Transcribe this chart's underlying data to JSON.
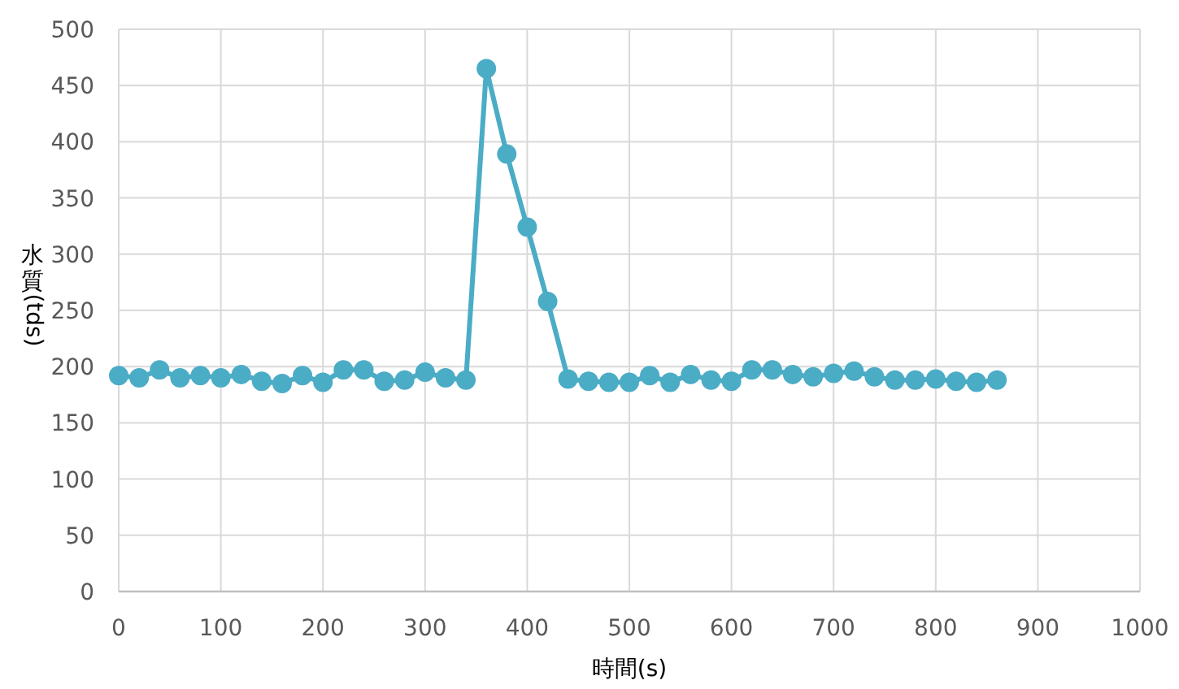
{
  "chart_data": {
    "type": "line",
    "xlabel": "時間(s)",
    "ylabel": "水質(tds)",
    "x": [
      0,
      20,
      40,
      60,
      80,
      100,
      120,
      140,
      160,
      180,
      200,
      220,
      240,
      260,
      280,
      300,
      320,
      340,
      360,
      380,
      400,
      420,
      440,
      460,
      480,
      500,
      520,
      540,
      560,
      580,
      600,
      620,
      640,
      660,
      680,
      700,
      720,
      740,
      760,
      780,
      800,
      820,
      840,
      860
    ],
    "values": [
      192,
      190,
      197,
      190,
      192,
      190,
      193,
      187,
      185,
      192,
      186,
      197,
      197,
      187,
      188,
      195,
      190,
      188,
      465,
      389,
      324,
      258,
      189,
      187,
      186,
      186,
      192,
      186,
      193,
      188,
      187,
      197,
      197,
      193,
      191,
      194,
      196,
      191,
      188,
      188,
      189,
      187,
      186,
      188
    ],
    "color": "#4bacc6",
    "xlim": [
      0,
      1000
    ],
    "xticks": [
      0,
      100,
      200,
      300,
      400,
      500,
      600,
      700,
      800,
      900,
      1000
    ],
    "ylim": [
      0,
      500
    ],
    "yticks": [
      0,
      50,
      100,
      150,
      200,
      250,
      300,
      350,
      400,
      450,
      500
    ],
    "grid": true,
    "marker": "circle",
    "line_style": "solid"
  }
}
